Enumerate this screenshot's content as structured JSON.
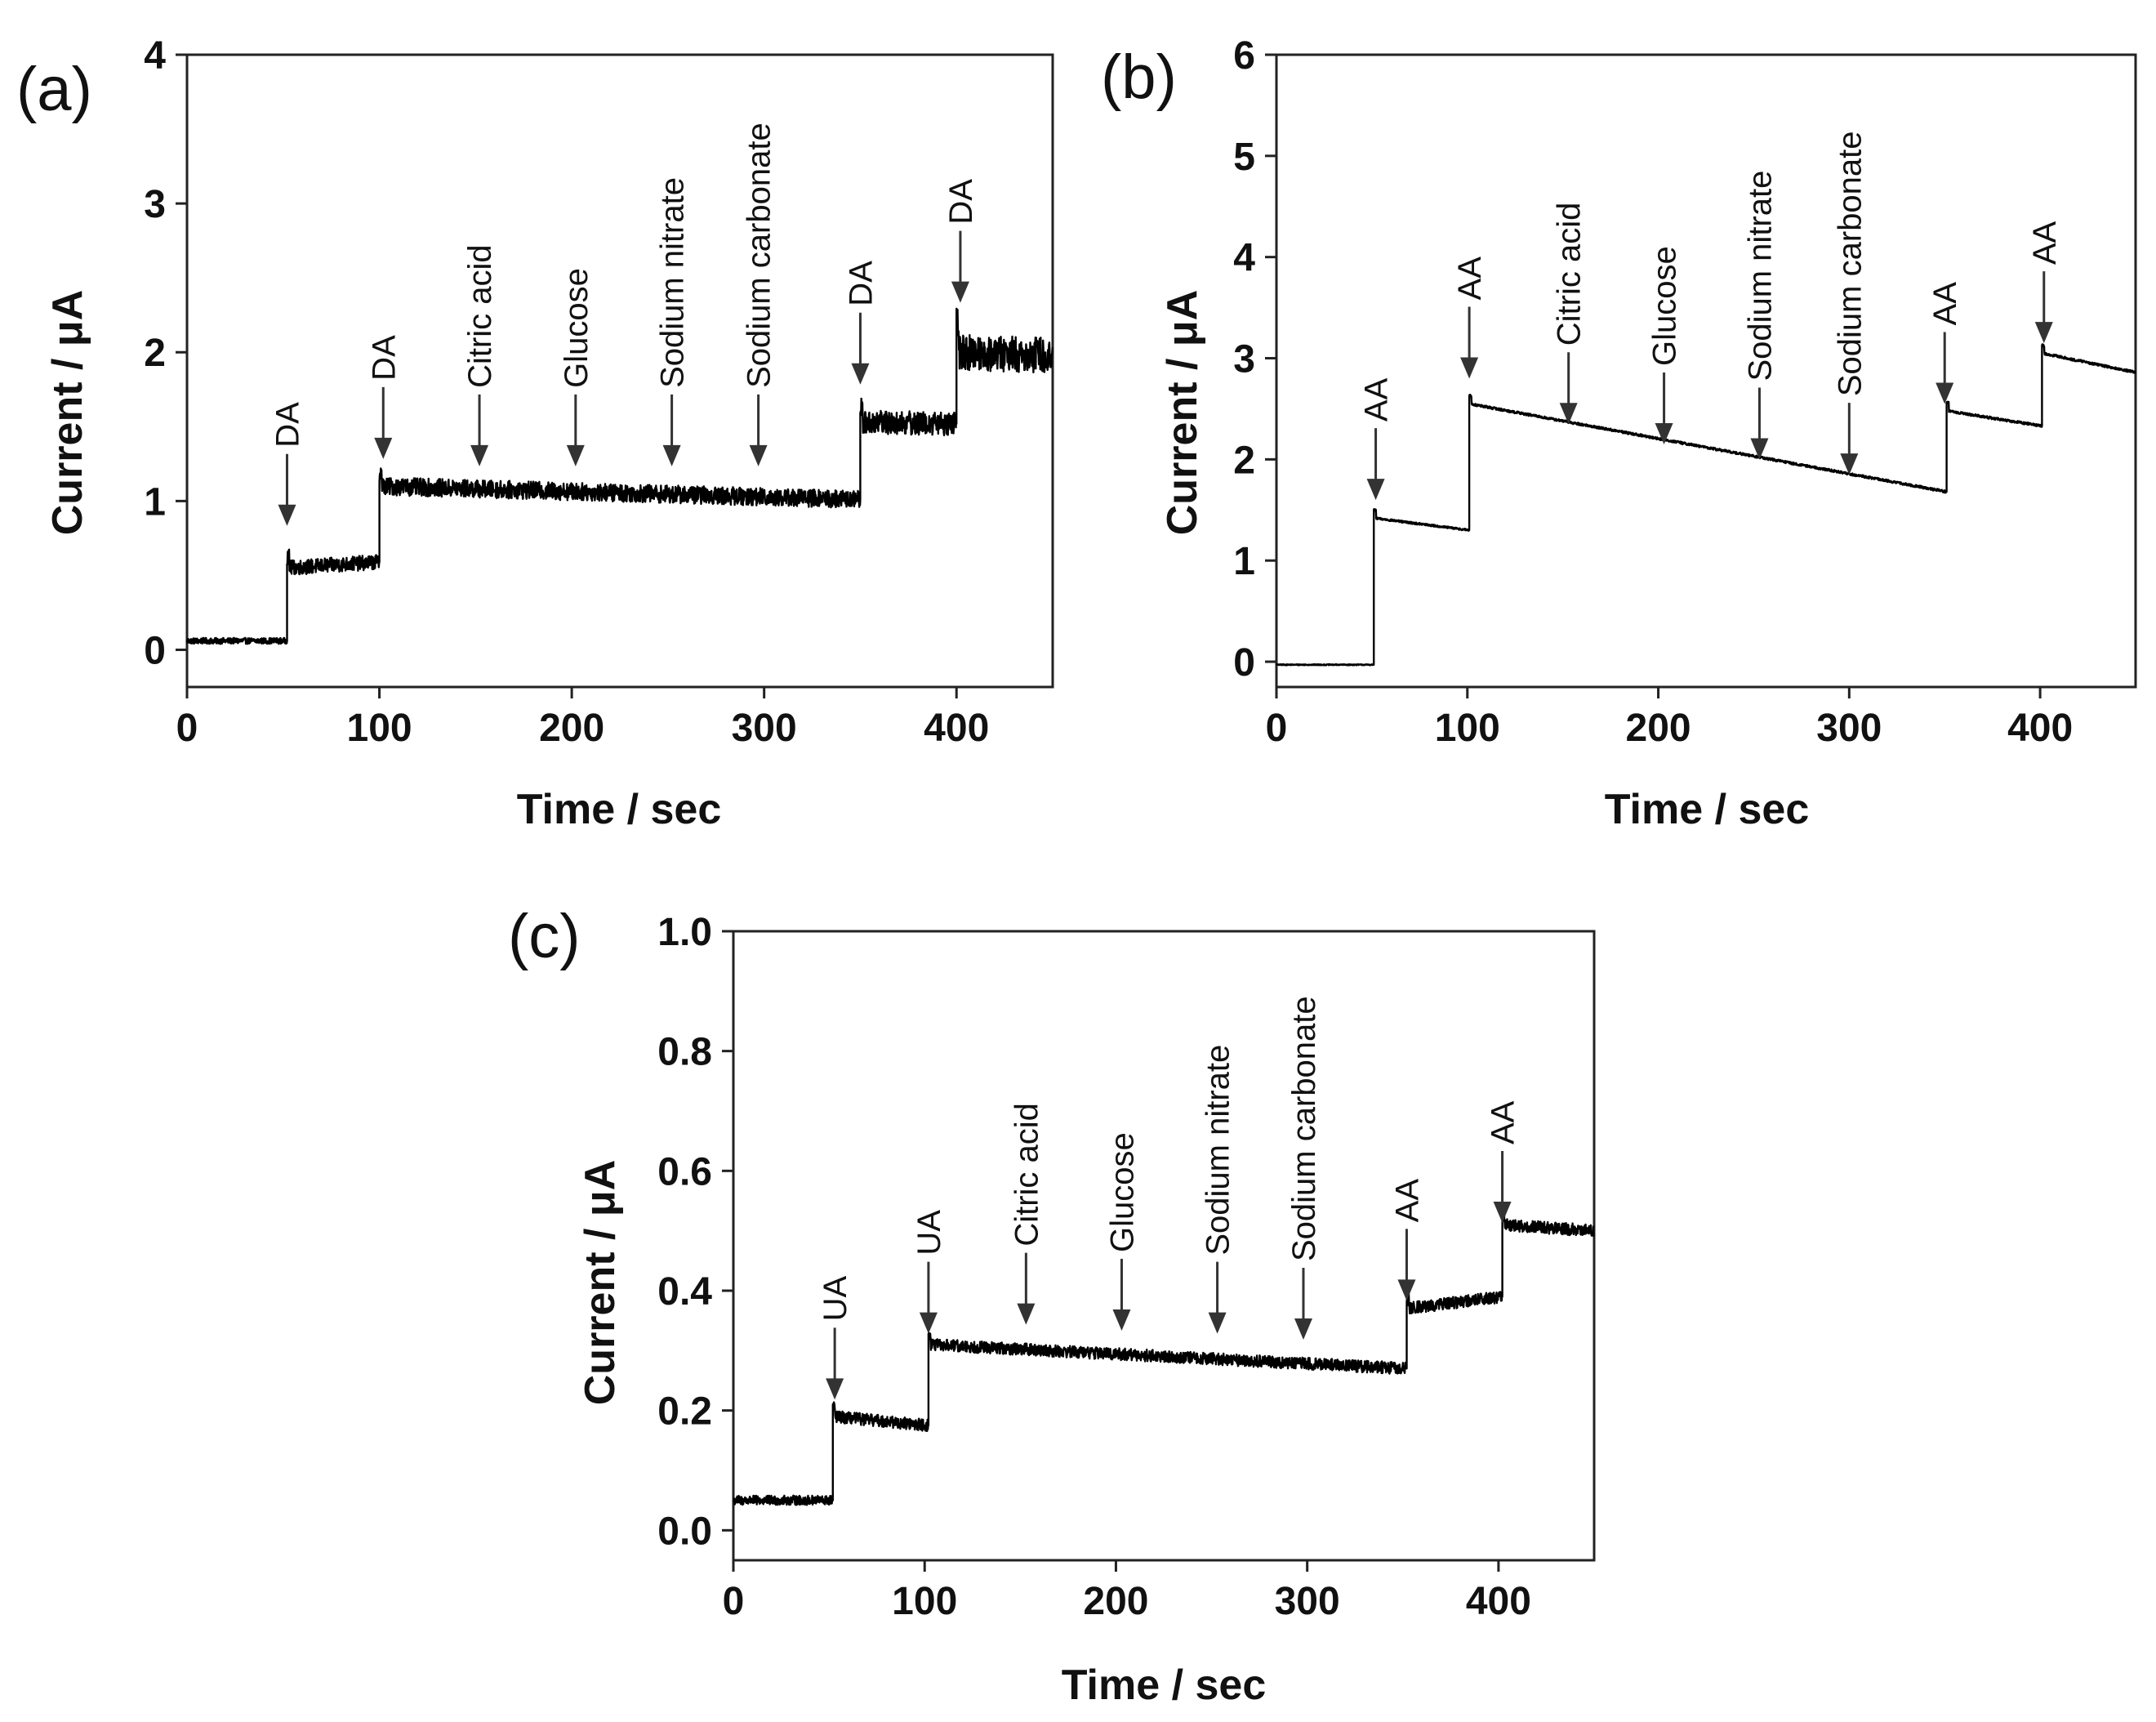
{
  "figure": {
    "panels": [
      "(a)",
      "(b)",
      "(c)"
    ]
  },
  "chart_data": [
    {
      "panel": "(a)",
      "type": "line",
      "xlabel": "Time / sec",
      "ylabel": "Current / μA",
      "xlim": [
        0,
        450
      ],
      "ylim": [
        -0.25,
        4
      ],
      "xticks": [
        0,
        100,
        200,
        300,
        400
      ],
      "yticks": [
        0,
        1,
        2,
        3,
        4
      ],
      "series": [
        {
          "name": "current",
          "steps": [
            {
              "t0": 0,
              "t1": 52,
              "mean": 0.06,
              "mean_end": 0.06,
              "noise": 0.02
            },
            {
              "t0": 52,
              "t1": 100,
              "mean": 0.55,
              "mean_end": 0.59,
              "noise": 0.05
            },
            {
              "t0": 100,
              "t1": 350,
              "mean": 1.1,
              "mean_end": 1.01,
              "noise": 0.06
            },
            {
              "t0": 350,
              "t1": 400,
              "mean": 1.53,
              "mean_end": 1.52,
              "noise": 0.08
            },
            {
              "t0": 400,
              "t1": 450,
              "mean": 2.0,
              "mean_end": 1.98,
              "noise": 0.12
            }
          ]
        }
      ],
      "annotations": [
        {
          "label": "DA",
          "x": 52,
          "y": 0.8
        },
        {
          "label": "DA",
          "x": 102,
          "y": 1.25
        },
        {
          "label": "Citric acid",
          "x": 152,
          "y": 1.2
        },
        {
          "label": "Glucose",
          "x": 202,
          "y": 1.2
        },
        {
          "label": "Sodium nitrate",
          "x": 252,
          "y": 1.2
        },
        {
          "label": "Sodium carbonate",
          "x": 297,
          "y": 1.2
        },
        {
          "label": "DA",
          "x": 350,
          "y": 1.75
        },
        {
          "label": "DA",
          "x": 402,
          "y": 2.3
        }
      ]
    },
    {
      "panel": "(b)",
      "type": "line",
      "xlabel": "Time / sec",
      "ylabel": "Current / μA",
      "xlim": [
        0,
        450
      ],
      "ylim": [
        -0.25,
        6
      ],
      "xticks": [
        0,
        100,
        200,
        300,
        400
      ],
      "yticks": [
        0,
        1,
        2,
        3,
        4,
        5,
        6
      ],
      "series": [
        {
          "name": "current",
          "steps": [
            {
              "t0": 0,
              "t1": 51,
              "mean": -0.03,
              "mean_end": -0.03,
              "noise": 0.005
            },
            {
              "t0": 51,
              "t1": 101,
              "mean": 1.42,
              "mean_end": 1.3,
              "noise": 0.01
            },
            {
              "t0": 101,
              "t1": 351,
              "mean": 2.55,
              "mean_end": 1.68,
              "noise": 0.012
            },
            {
              "t0": 351,
              "t1": 401,
              "mean": 2.48,
              "mean_end": 2.33,
              "noise": 0.012
            },
            {
              "t0": 401,
              "t1": 450,
              "mean": 3.05,
              "mean_end": 2.86,
              "noise": 0.012
            }
          ]
        }
      ],
      "annotations": [
        {
          "label": "AA",
          "x": 52,
          "y": 1.55
        },
        {
          "label": "AA",
          "x": 101,
          "y": 2.75
        },
        {
          "label": "Citric acid",
          "x": 153,
          "y": 2.3
        },
        {
          "label": "Glucose",
          "x": 203,
          "y": 2.1
        },
        {
          "label": "Sodium nitrate",
          "x": 253,
          "y": 1.95
        },
        {
          "label": "Sodium carbonate",
          "x": 300,
          "y": 1.8
        },
        {
          "label": "AA",
          "x": 350,
          "y": 2.5
        },
        {
          "label": "AA",
          "x": 402,
          "y": 3.1
        }
      ]
    },
    {
      "panel": "(c)",
      "type": "line",
      "xlabel": "Time / sec",
      "ylabel": "Current / μA",
      "xlim": [
        0,
        450
      ],
      "ylim": [
        -0.05,
        1.0
      ],
      "xticks": [
        0,
        100,
        200,
        300,
        400
      ],
      "yticks": [
        0.0,
        0.2,
        0.4,
        0.6,
        0.8,
        1.0
      ],
      "ytick_labels": [
        "0.0",
        "0.2",
        "0.4",
        "0.6",
        "0.8",
        "1.0"
      ],
      "series": [
        {
          "name": "current",
          "steps": [
            {
              "t0": 0,
              "t1": 52,
              "mean": 0.05,
              "mean_end": 0.05,
              "noise": 0.008
            },
            {
              "t0": 52,
              "t1": 102,
              "mean": 0.19,
              "mean_end": 0.175,
              "noise": 0.01
            },
            {
              "t0": 102,
              "t1": 352,
              "mean": 0.31,
              "mean_end": 0.27,
              "noise": 0.01
            },
            {
              "t0": 352,
              "t1": 402,
              "mean": 0.37,
              "mean_end": 0.39,
              "noise": 0.01
            },
            {
              "t0": 402,
              "t1": 450,
              "mean": 0.51,
              "mean_end": 0.5,
              "noise": 0.01
            }
          ]
        }
      ],
      "annotations": [
        {
          "label": "UA",
          "x": 53,
          "y": 0.21
        },
        {
          "label": "UA",
          "x": 102,
          "y": 0.32
        },
        {
          "label": "Citric acid",
          "x": 153,
          "y": 0.335
        },
        {
          "label": "Glucose",
          "x": 203,
          "y": 0.325
        },
        {
          "label": "Sodium nitrate",
          "x": 253,
          "y": 0.32
        },
        {
          "label": "Sodium carbonate",
          "x": 298,
          "y": 0.31
        },
        {
          "label": "AA",
          "x": 352,
          "y": 0.375
        },
        {
          "label": "AA",
          "x": 402,
          "y": 0.505
        }
      ]
    }
  ]
}
